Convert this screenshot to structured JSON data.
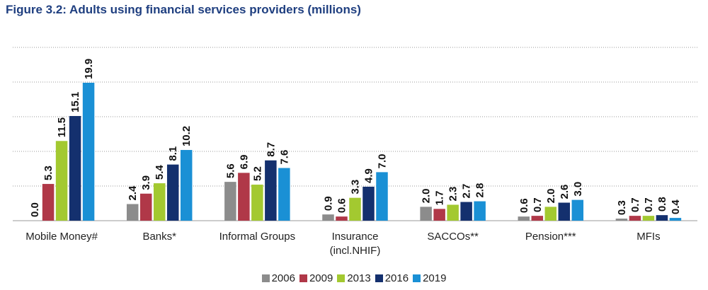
{
  "title": "Figure 3.2: Adults using financial services providers (millions)",
  "chart_data": {
    "type": "bar",
    "title": "Figure 3.2: Adults using financial services providers (millions)",
    "xlabel": "",
    "ylabel": "",
    "ylim": [
      0,
      25
    ],
    "grid": true,
    "legend_position": "bottom",
    "categories": [
      "Mobile Money#",
      "Banks*",
      "Informal Groups",
      "Insurance (incl.NHIF)",
      "SACCOs**",
      "Pension***",
      "MFIs"
    ],
    "category_lines": [
      [
        "Mobile Money#"
      ],
      [
        "Banks*"
      ],
      [
        "Informal Groups"
      ],
      [
        "Insurance",
        "(incl.NHIF)"
      ],
      [
        "SACCOs**"
      ],
      [
        "Pension***"
      ],
      [
        "MFIs"
      ]
    ],
    "series": [
      {
        "name": "2006",
        "color": "#8c8c8c",
        "values": [
          0.0,
          2.4,
          5.6,
          0.9,
          2.0,
          0.6,
          0.3
        ],
        "labels": [
          "0.0",
          "2.4",
          "5.6",
          "0.9",
          "2.0",
          "0.6",
          "0.3"
        ]
      },
      {
        "name": "2009",
        "color": "#b03848",
        "values": [
          5.3,
          3.9,
          6.9,
          0.6,
          1.7,
          0.7,
          0.7
        ],
        "labels": [
          "5.3",
          "3.9",
          "6.9",
          "0.6",
          "1.7",
          "0.7",
          "0.7"
        ]
      },
      {
        "name": "2013",
        "color": "#a3c930",
        "values": [
          11.5,
          5.4,
          5.2,
          3.3,
          2.3,
          2.0,
          0.7
        ],
        "labels": [
          "11.5",
          "5.4",
          "5.2",
          "3.3",
          "2.3",
          "2.0",
          "0.7"
        ]
      },
      {
        "name": "2016",
        "color": "#14306e",
        "values": [
          15.1,
          8.1,
          8.7,
          4.9,
          2.7,
          2.6,
          0.8
        ],
        "labels": [
          "15.1",
          "8.1",
          "8.7",
          "4.9",
          "2.7",
          "2.6",
          "0.8"
        ]
      },
      {
        "name": "2019",
        "color": "#1a90d5",
        "values": [
          19.9,
          10.2,
          7.6,
          7.0,
          2.8,
          3.0,
          0.4
        ],
        "labels": [
          "19.9",
          "10.2",
          "7.6",
          "7.0",
          "2.8",
          "3.0",
          "0.4"
        ]
      }
    ]
  }
}
